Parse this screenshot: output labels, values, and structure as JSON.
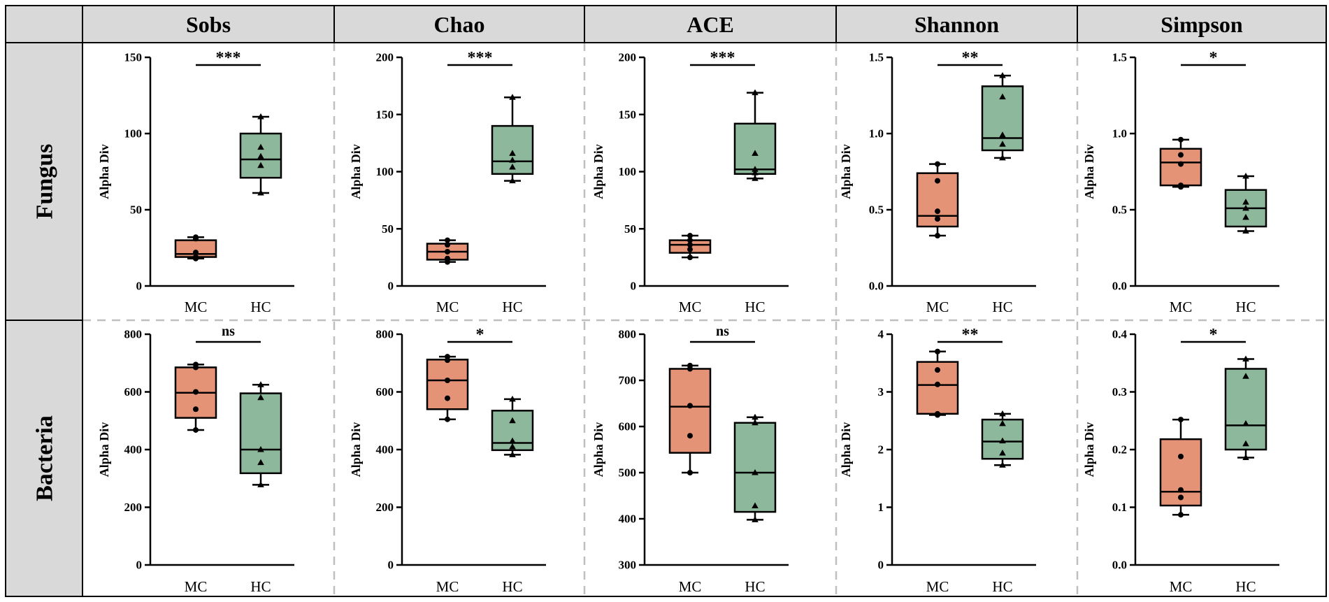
{
  "colors": {
    "MC": "#E59377",
    "HC": "#8DB89B",
    "header_bg": "#D9D9D9",
    "grid_line": "#BFBFBF",
    "border": "#000000"
  },
  "columns": [
    "Sobs",
    "Chao",
    "ACE",
    "Shannon",
    "Simpson"
  ],
  "rows": [
    "Fungus",
    "Bacteria"
  ],
  "chart_data": [
    {
      "type": "box",
      "row": "Fungus",
      "title": "Sobs",
      "ylabel": "Alpha Div",
      "categories": [
        "MC",
        "HC"
      ],
      "ylim": [
        0,
        150
      ],
      "yticks": [
        "0",
        "50",
        "100",
        "150"
      ],
      "significance": "***",
      "series": [
        {
          "name": "MC",
          "whisker_low": 18,
          "q1": 19,
          "median": 21,
          "q3": 30,
          "whisker_high": 32,
          "points": [
            18,
            19,
            22,
            31,
            32
          ]
        },
        {
          "name": "HC",
          "whisker_low": 61,
          "q1": 71,
          "median": 83,
          "q3": 100,
          "whisker_high": 111,
          "points": [
            61,
            79,
            85,
            91,
            111
          ]
        }
      ]
    },
    {
      "type": "box",
      "row": "Fungus",
      "title": "Chao",
      "ylabel": "Alpha Div",
      "categories": [
        "MC",
        "HC"
      ],
      "ylim": [
        0,
        200
      ],
      "yticks": [
        "0",
        "50",
        "100",
        "150",
        "200"
      ],
      "significance": "***",
      "series": [
        {
          "name": "MC",
          "whisker_low": 21,
          "q1": 23,
          "median": 30,
          "q3": 37,
          "whisker_high": 40,
          "points": [
            21,
            24,
            30,
            36,
            40
          ]
        },
        {
          "name": "HC",
          "whisker_low": 92,
          "q1": 98,
          "median": 109,
          "q3": 140,
          "whisker_high": 165,
          "points": [
            92,
            104,
            110,
            116,
            165
          ]
        }
      ]
    },
    {
      "type": "box",
      "row": "Fungus",
      "title": "ACE",
      "ylabel": "Alpha Div",
      "categories": [
        "MC",
        "HC"
      ],
      "ylim": [
        0,
        200
      ],
      "yticks": [
        "0",
        "50",
        "100",
        "150",
        "200"
      ],
      "significance": "***",
      "series": [
        {
          "name": "MC",
          "whisker_low": 25,
          "q1": 29,
          "median": 36,
          "q3": 40,
          "whisker_high": 44,
          "points": [
            25,
            32,
            36,
            40,
            44
          ]
        },
        {
          "name": "HC",
          "whisker_low": 94,
          "q1": 98,
          "median": 102,
          "q3": 142,
          "whisker_high": 169,
          "points": [
            94,
            99,
            102,
            116,
            169
          ]
        }
      ]
    },
    {
      "type": "box",
      "row": "Fungus",
      "title": "Shannon",
      "ylabel": "Alpha Div",
      "categories": [
        "MC",
        "HC"
      ],
      "ylim": [
        0,
        1.5
      ],
      "yticks": [
        "0.0",
        "0.5",
        "1.0",
        "1.5"
      ],
      "significance": "**",
      "series": [
        {
          "name": "MC",
          "whisker_low": 0.33,
          "q1": 0.39,
          "median": 0.46,
          "q3": 0.74,
          "whisker_high": 0.8,
          "points": [
            0.33,
            0.44,
            0.49,
            0.69,
            0.8
          ]
        },
        {
          "name": "HC",
          "whisker_low": 0.84,
          "q1": 0.89,
          "median": 0.97,
          "q3": 1.31,
          "whisker_high": 1.38,
          "points": [
            0.84,
            0.93,
            0.99,
            1.24,
            1.38
          ]
        }
      ]
    },
    {
      "type": "box",
      "row": "Fungus",
      "title": "Simpson",
      "ylabel": "Alpha Div",
      "categories": [
        "MC",
        "HC"
      ],
      "ylim": [
        0,
        1.5
      ],
      "yticks": [
        "0.0",
        "0.5",
        "1.0",
        "1.5"
      ],
      "significance": "*",
      "series": [
        {
          "name": "MC",
          "whisker_low": 0.65,
          "q1": 0.66,
          "median": 0.81,
          "q3": 0.9,
          "whisker_high": 0.96,
          "points": [
            0.65,
            0.66,
            0.8,
            0.86,
            0.96
          ]
        },
        {
          "name": "HC",
          "whisker_low": 0.36,
          "q1": 0.39,
          "median": 0.51,
          "q3": 0.63,
          "whisker_high": 0.72,
          "points": [
            0.36,
            0.45,
            0.51,
            0.55,
            0.72
          ]
        }
      ]
    },
    {
      "type": "box",
      "row": "Bacteria",
      "title": "Sobs",
      "ylabel": "Alpha Div",
      "categories": [
        "MC",
        "HC"
      ],
      "ylim": [
        0,
        800
      ],
      "yticks": [
        "0",
        "200",
        "400",
        "600",
        "800"
      ],
      "significance": "ns",
      "series": [
        {
          "name": "MC",
          "whisker_low": 468,
          "q1": 510,
          "median": 597,
          "q3": 685,
          "whisker_high": 695,
          "points": [
            468,
            540,
            600,
            685,
            695
          ]
        },
        {
          "name": "HC",
          "whisker_low": 278,
          "q1": 318,
          "median": 400,
          "q3": 595,
          "whisker_high": 625,
          "points": [
            278,
            355,
            400,
            580,
            625
          ]
        }
      ]
    },
    {
      "type": "box",
      "row": "Bacteria",
      "title": "Chao",
      "ylabel": "Alpha Div",
      "categories": [
        "MC",
        "HC"
      ],
      "ylim": [
        0,
        800
      ],
      "yticks": [
        "0",
        "200",
        "400",
        "600",
        "800"
      ],
      "significance": "*",
      "series": [
        {
          "name": "MC",
          "whisker_low": 505,
          "q1": 540,
          "median": 640,
          "q3": 712,
          "whisker_high": 722,
          "points": [
            505,
            578,
            640,
            710,
            722
          ]
        },
        {
          "name": "HC",
          "whisker_low": 382,
          "q1": 398,
          "median": 423,
          "q3": 535,
          "whisker_high": 575,
          "points": [
            382,
            410,
            430,
            500,
            575
          ]
        }
      ]
    },
    {
      "type": "box",
      "row": "Bacteria",
      "title": "ACE",
      "ylabel": "Alpha Div",
      "categories": [
        "MC",
        "HC"
      ],
      "ylim": [
        300,
        800
      ],
      "yticks": [
        "300",
        "400",
        "500",
        "600",
        "700",
        "800"
      ],
      "significance": "ns",
      "series": [
        {
          "name": "MC",
          "whisker_low": 500,
          "q1": 543,
          "median": 643,
          "q3": 725,
          "whisker_high": 732,
          "points": [
            500,
            580,
            645,
            725,
            732
          ]
        },
        {
          "name": "HC",
          "whisker_low": 398,
          "q1": 415,
          "median": 500,
          "q3": 608,
          "whisker_high": 620,
          "points": [
            398,
            428,
            500,
            608,
            620
          ]
        }
      ]
    },
    {
      "type": "box",
      "row": "Bacteria",
      "title": "Shannon",
      "ylabel": "Alpha Div",
      "categories": [
        "MC",
        "HC"
      ],
      "ylim": [
        0,
        4
      ],
      "yticks": [
        "0",
        "1",
        "2",
        "3",
        "4"
      ],
      "significance": "**",
      "series": [
        {
          "name": "MC",
          "whisker_low": 2.6,
          "q1": 2.62,
          "median": 3.12,
          "q3": 3.52,
          "whisker_high": 3.7,
          "points": [
            2.6,
            2.62,
            3.13,
            3.38,
            3.7
          ]
        },
        {
          "name": "HC",
          "whisker_low": 1.73,
          "q1": 1.84,
          "median": 2.14,
          "q3": 2.52,
          "whisker_high": 2.62,
          "points": [
            1.73,
            1.94,
            2.15,
            2.45,
            2.62
          ]
        }
      ]
    },
    {
      "type": "box",
      "row": "Bacteria",
      "title": "Simpson",
      "ylabel": "Alpha Div",
      "categories": [
        "MC",
        "HC"
      ],
      "ylim": [
        0,
        0.4
      ],
      "yticks": [
        "0.0",
        "0.1",
        "0.2",
        "0.3",
        "0.4"
      ],
      "significance": "*",
      "series": [
        {
          "name": "MC",
          "whisker_low": 0.087,
          "q1": 0.103,
          "median": 0.127,
          "q3": 0.218,
          "whisker_high": 0.252,
          "points": [
            0.087,
            0.117,
            0.13,
            0.188,
            0.252
          ]
        },
        {
          "name": "HC",
          "whisker_low": 0.186,
          "q1": 0.2,
          "median": 0.242,
          "q3": 0.34,
          "whisker_high": 0.357,
          "points": [
            0.186,
            0.21,
            0.245,
            0.327,
            0.357
          ]
        }
      ]
    }
  ]
}
